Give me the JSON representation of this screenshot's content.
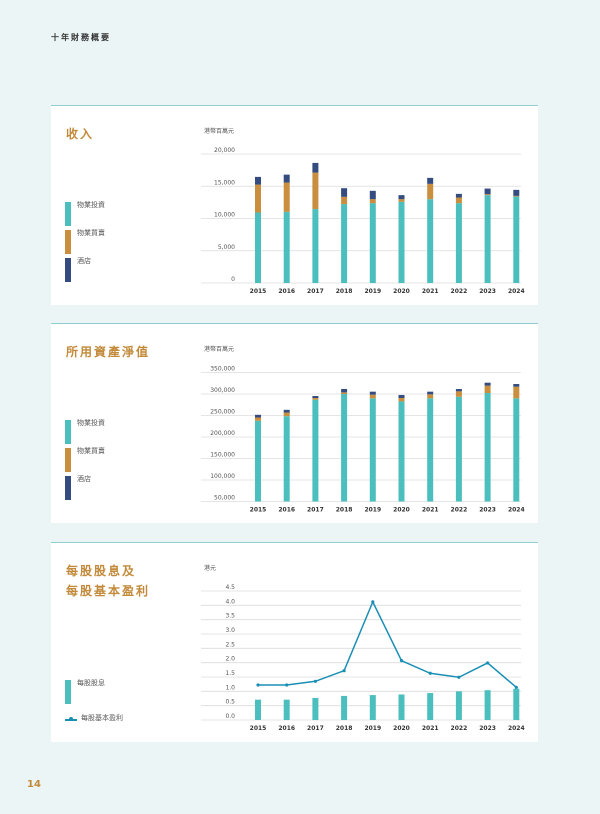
{
  "page": {
    "heading": "十年財務概要",
    "page_number": "14"
  },
  "colors": {
    "property_investment": "#4bbfbe",
    "property_sales": "#c98f3e",
    "hotel": "#344c80",
    "eps_line": "#1a8fb5",
    "title": "#c28a3a",
    "background": "#ebf5f5"
  },
  "panels": {
    "revenue": {
      "title": "收入",
      "unit": "港幣百萬元",
      "legend": [
        "物業投資",
        "物業買賣",
        "酒店"
      ]
    },
    "net_assets": {
      "title": "所用資產淨值",
      "unit": "港幣百萬元",
      "legend": [
        "物業投資",
        "物業買賣",
        "酒店"
      ]
    },
    "eps": {
      "title_line1": "每股股息及",
      "title_line2": "每股基本盈利",
      "unit": "港元",
      "legend": [
        "每股股息",
        "每股基本盈利"
      ]
    }
  },
  "chart_data": [
    {
      "type": "bar",
      "stacked": true,
      "title": "收入",
      "ylabel": "港幣百萬元",
      "xlabel": "",
      "categories": [
        "2015",
        "2016",
        "2017",
        "2018",
        "2019",
        "2020",
        "2021",
        "2022",
        "2023",
        "2024"
      ],
      "yticks": [
        "0",
        "5,000",
        "10,000",
        "15,000",
        "20,000"
      ],
      "ylim": [
        0,
        20000
      ],
      "grid": true,
      "legend_position": "left",
      "series": [
        {
          "name": "物業投資",
          "values": [
            10930,
            11040,
            11460,
            12230,
            12380,
            12590,
            13000,
            12380,
            13620,
            13400
          ]
        },
        {
          "name": "物業買賣",
          "values": [
            4330,
            4530,
            5660,
            1130,
            620,
            410,
            2370,
            870,
            150,
            110
          ]
        },
        {
          "name": "酒店",
          "values": [
            1190,
            1230,
            1500,
            1340,
            1290,
            620,
            930,
            570,
            870,
            930
          ]
        }
      ]
    },
    {
      "type": "bar",
      "stacked": true,
      "title": "所用資產淨值",
      "ylabel": "港幣百萬元",
      "xlabel": "",
      "categories": [
        "2015",
        "2016",
        "2017",
        "2018",
        "2019",
        "2020",
        "2021",
        "2022",
        "2023",
        "2024"
      ],
      "yticks": [
        "50,000",
        "100,000",
        "150,000",
        "200,000",
        "250,000",
        "300,000",
        "350,000"
      ],
      "ylim": [
        50000,
        350000
      ],
      "grid": true,
      "legend_position": "left",
      "series": [
        {
          "name": "物業投資",
          "values": [
            237600,
            248400,
            286800,
            300000,
            289900,
            282800,
            289900,
            293500,
            302300,
            289900
          ]
        },
        {
          "name": "物業買賣",
          "values": [
            7700,
            8500,
            3900,
            3800,
            8500,
            7900,
            9300,
            12700,
            17100,
            27100
          ]
        },
        {
          "name": "酒店",
          "values": [
            6300,
            6300,
            4600,
            7800,
            7000,
            7000,
            6200,
            5400,
            6900,
            6200
          ]
        }
      ]
    },
    {
      "type": "bar+line",
      "title": "每股股息及每股基本盈利",
      "ylabel": "港元",
      "xlabel": "",
      "categories": [
        "2015",
        "2016",
        "2017",
        "2018",
        "2019",
        "2020",
        "2021",
        "2022",
        "2023",
        "2024"
      ],
      "yticks": [
        "0.0",
        "0.5",
        "1.0",
        "1.5",
        "2.0",
        "2.5",
        "3.0",
        "3.5",
        "4.0",
        "4.5"
      ],
      "ylim": [
        0,
        4.5
      ],
      "grid": true,
      "legend_position": "left",
      "series": [
        {
          "name": "每股股息",
          "type": "bar",
          "values": [
            0.71,
            0.71,
            0.77,
            0.84,
            0.87,
            0.89,
            0.94,
            1.0,
            1.04,
            1.09
          ]
        },
        {
          "name": "每股基本盈利",
          "type": "line",
          "values": [
            1.22,
            1.22,
            1.35,
            1.72,
            4.12,
            2.07,
            1.63,
            1.49,
            1.99,
            1.14
          ]
        }
      ]
    }
  ]
}
